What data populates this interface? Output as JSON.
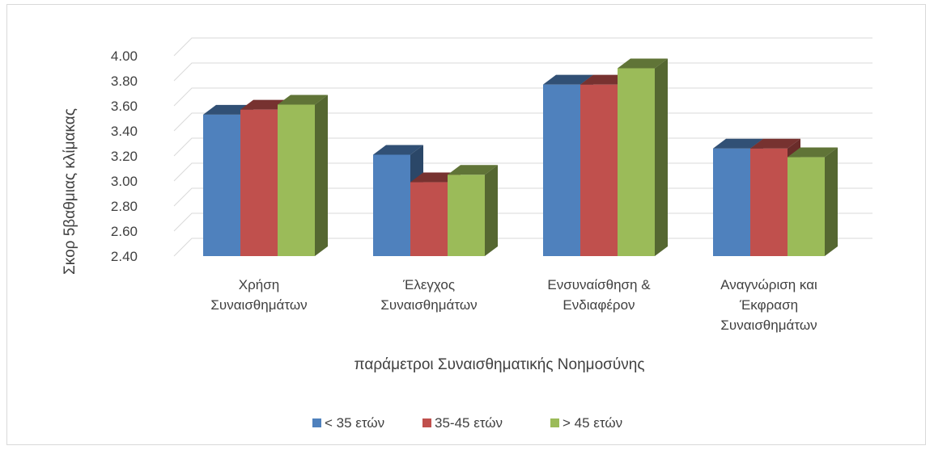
{
  "chart_data": {
    "type": "bar",
    "title": "",
    "xlabel": "παράμετροι Συναισθηματικής Νοημοσύνης",
    "ylabel": "Σκορ 5βαθμιας κλίμακας",
    "ylim": [
      2.4,
      4.0
    ],
    "yticks": [
      "2.40",
      "2.60",
      "2.80",
      "3.00",
      "3.20",
      "3.40",
      "3.60",
      "3.80",
      "4.00"
    ],
    "categories": [
      [
        "Χρήση",
        "Συναισθημάτων"
      ],
      [
        "Έλεγχος",
        "Συναισθημάτων"
      ],
      [
        "Ενσυναίσθηση &",
        "Ενδιαφέρον"
      ],
      [
        "Αναγνώριση και",
        "Έκφραση",
        "Συναισθημάτων"
      ]
    ],
    "series": [
      {
        "name": "< 35 ετών",
        "color": "#4f81bd",
        "values": [
          3.53,
          3.21,
          3.77,
          3.26
        ]
      },
      {
        "name": "35-45 ετών",
        "color": "#c0504d",
        "values": [
          3.57,
          2.99,
          3.77,
          3.26
        ]
      },
      {
        "name": "> 45 ετών",
        "color": "#9bbb59",
        "values": [
          3.61,
          3.05,
          3.9,
          3.19
        ]
      }
    ],
    "grid": true,
    "legend_position": "bottom",
    "style": "3d-clustered-column"
  }
}
